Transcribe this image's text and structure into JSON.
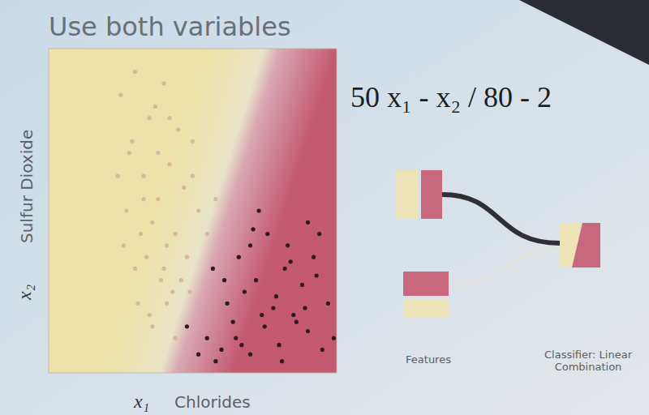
{
  "chart_data": {
    "type": "scatter",
    "title": "Use both variables",
    "annotation": "50 x₁ - x₂ / 80 - 2",
    "xlabel": "Chlorides",
    "xsymbol": "x₁",
    "ylabel": "Sulfur Dioxide",
    "ysymbol": "x₂",
    "xlim": [
      0,
      0.1
    ],
    "ylim": [
      0,
      140
    ],
    "tick_labels": false,
    "grid": false,
    "marker": "circle",
    "series": [
      {
        "color": "#d8b79c",
        "x": [
          0.025,
          0.03,
          0.035,
          0.028,
          0.04,
          0.045,
          0.033,
          0.038,
          0.042,
          0.05,
          0.027,
          0.032,
          0.036,
          0.041,
          0.047,
          0.03,
          0.034,
          0.039,
          0.044,
          0.052,
          0.024,
          0.029,
          0.037,
          0.043,
          0.048,
          0.031,
          0.035,
          0.04,
          0.046,
          0.055,
          0.026,
          0.033,
          0.038,
          0.042,
          0.05,
          0.058,
          0.036,
          0.041,
          0.044,
          0.049
        ],
        "values": [
          120,
          130,
          110,
          95,
          125,
          105,
          85,
          75,
          90,
          100,
          70,
          60,
          65,
          55,
          80,
          45,
          50,
          40,
          60,
          70,
          85,
          100,
          115,
          35,
          50,
          30,
          25,
          45,
          40,
          60,
          55,
          75,
          95,
          110,
          85,
          75,
          20,
          30,
          15,
          35
        ]
      },
      {
        "color": "#2e1a24",
        "x": [
          0.06,
          0.065,
          0.07,
          0.075,
          0.08,
          0.085,
          0.09,
          0.095,
          0.062,
          0.068,
          0.072,
          0.078,
          0.082,
          0.088,
          0.092,
          0.058,
          0.064,
          0.07,
          0.076,
          0.084,
          0.09,
          0.097,
          0.055,
          0.061,
          0.067,
          0.073,
          0.079,
          0.086,
          0.093,
          0.099,
          0.052,
          0.066,
          0.074,
          0.081,
          0.089,
          0.071,
          0.083,
          0.094,
          0.048,
          0.057
        ],
        "values": [
          10,
          15,
          8,
          20,
          12,
          25,
          18,
          10,
          30,
          35,
          40,
          28,
          45,
          38,
          50,
          5,
          22,
          55,
          60,
          48,
          65,
          30,
          15,
          40,
          12,
          70,
          33,
          22,
          42,
          15,
          8,
          50,
          25,
          5,
          28,
          62,
          55,
          60,
          20,
          45
        ]
      }
    ],
    "features_label": "Features",
    "classifier_label": "Classifier: Linear Combination"
  }
}
